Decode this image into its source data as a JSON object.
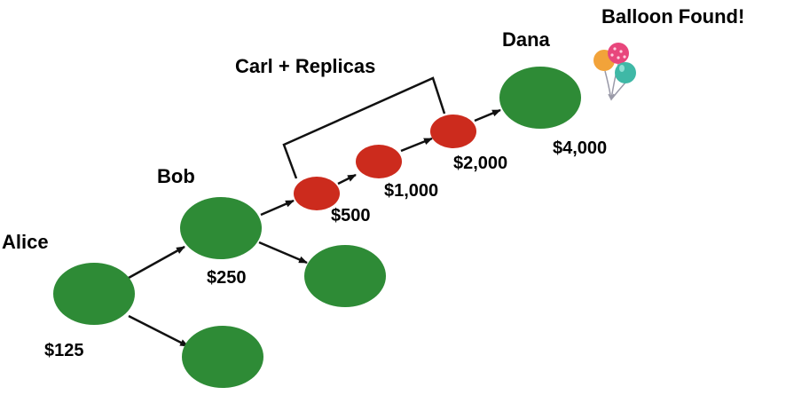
{
  "colors": {
    "honest_node": "#2e8b36",
    "replica_node": "#cc2b1d",
    "arrow": "#111111",
    "balloon_pink": "#e8467c",
    "balloon_orange": "#f2a33a",
    "balloon_teal": "#3fb8a6"
  },
  "labels": {
    "alice": "Alice",
    "bob": "Bob",
    "dana": "Dana",
    "carl_replicas": "Carl + Replicas",
    "balloon_found": "Balloon Found!"
  },
  "rewards": {
    "alice": "$125",
    "bob": "$250",
    "replica1": "$500",
    "replica2": "$1,000",
    "replica3": "$2,000",
    "dana": "$4,000"
  },
  "icons": {
    "balloon": "balloons-icon"
  }
}
